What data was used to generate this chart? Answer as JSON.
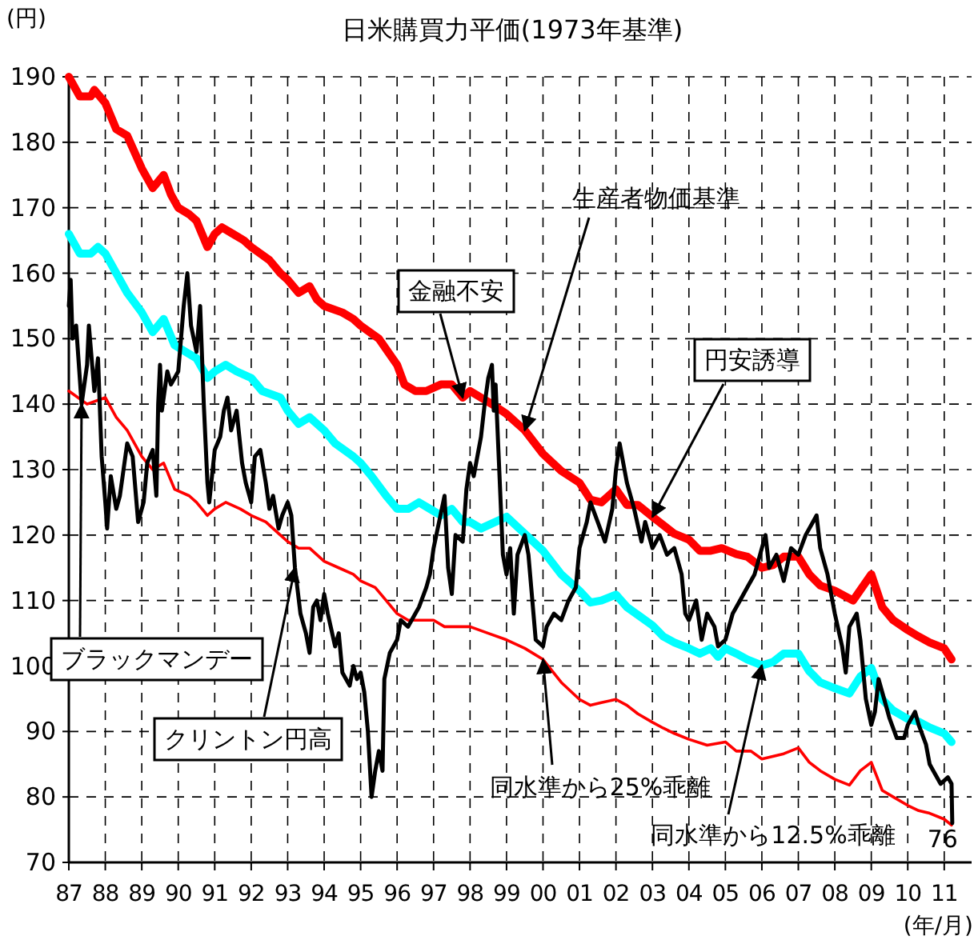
{
  "chart_data": {
    "type": "line",
    "title": "日米購買力平価(1973年基準)",
    "ylabel": "(円)",
    "xlabel": "(年/月)",
    "xlim": [
      1987,
      2011.75
    ],
    "ylim": [
      70,
      190
    ],
    "yticks": [
      70,
      80,
      90,
      100,
      110,
      120,
      130,
      140,
      150,
      160,
      170,
      180,
      190
    ],
    "xticks": [
      {
        "value": 1987,
        "label": "87"
      },
      {
        "value": 1988,
        "label": "88"
      },
      {
        "value": 1989,
        "label": "89"
      },
      {
        "value": 1990,
        "label": "90"
      },
      {
        "value": 1991,
        "label": "91"
      },
      {
        "value": 1992,
        "label": "92"
      },
      {
        "value": 1993,
        "label": "93"
      },
      {
        "value": 1994,
        "label": "94"
      },
      {
        "value": 1995,
        "label": "95"
      },
      {
        "value": 1996,
        "label": "96"
      },
      {
        "value": 1997,
        "label": "97"
      },
      {
        "value": 1998,
        "label": "98"
      },
      {
        "value": 1999,
        "label": "99"
      },
      {
        "value": 2000,
        "label": "00"
      },
      {
        "value": 2001,
        "label": "01"
      },
      {
        "value": 2002,
        "label": "02"
      },
      {
        "value": 2003,
        "label": "03"
      },
      {
        "value": 2004,
        "label": "04"
      },
      {
        "value": 2005,
        "label": "05"
      },
      {
        "value": 2006,
        "label": "06"
      },
      {
        "value": 2007,
        "label": "07"
      },
      {
        "value": 2008,
        "label": "08"
      },
      {
        "value": 2009,
        "label": "09"
      },
      {
        "value": 2010,
        "label": "10"
      },
      {
        "value": 2011,
        "label": "11"
      }
    ],
    "grid": true,
    "marker": "none",
    "line_style": "solid",
    "series": [
      {
        "color": "#ff0000",
        "x": [
          1987.0,
          1987.5,
          1988.0,
          1988.3,
          1988.6,
          1989.0,
          1989.3,
          1989.6,
          1989.9,
          1990.3,
          1990.5,
          1990.8,
          1991.0,
          1991.3,
          1991.7,
          1992.0,
          1992.4,
          1992.8,
          1993.0,
          1993.3,
          1993.6,
          1994.0,
          1994.4,
          1994.8,
          1995.0,
          1995.4,
          1995.7,
          1996.0,
          1996.3,
          1996.6,
          1997.0,
          1997.3,
          1997.6,
          1998.0,
          1998.5,
          1999.0,
          1999.5,
          2000.0,
          2000.5,
          2001.0,
          2001.3,
          2001.6,
          2002.0,
          2002.3,
          2002.6,
          2003.0,
          2003.3,
          2003.6,
          2004.0,
          2004.5,
          2005.0,
          2005.3,
          2005.7,
          2006.0,
          2006.3,
          2006.6,
          2007.0,
          2007.3,
          2007.6,
          2008.0,
          2008.4,
          2008.7,
          2009.0,
          2009.3,
          2009.6,
          2010.0,
          2010.3,
          2010.6,
          2011.0,
          2011.2
        ],
        "values": [
          142,
          140,
          141,
          138,
          136,
          132,
          130,
          131,
          127,
          126,
          125,
          123,
          124,
          125,
          124,
          123,
          122,
          120,
          119,
          118,
          118,
          116,
          115,
          114,
          113,
          112,
          110,
          108,
          107,
          107,
          107,
          106,
          106,
          106,
          105,
          104,
          102.7,
          101,
          97.5,
          94.9,
          94,
          94.4,
          94.9,
          94,
          92.7,
          91.4,
          90.5,
          89.7,
          88.8,
          87.9,
          88.4,
          87,
          87,
          85.8,
          86.2,
          86.6,
          87.5,
          85.3,
          84,
          82.7,
          81.8,
          84,
          85.3,
          81,
          80,
          78.7,
          77.9,
          77.5,
          76.6,
          75.7
        ]
      },
      {
        "color": "#00ffff",
        "x": [
          1987.0,
          1987.3,
          1987.6,
          1987.8,
          1988.0,
          1988.3,
          1988.6,
          1989.0,
          1989.3,
          1989.6,
          1989.9,
          1990.2,
          1990.5,
          1990.8,
          1991.0,
          1991.3,
          1991.6,
          1992.0,
          1992.3,
          1992.8,
          1993.0,
          1993.3,
          1993.6,
          1994.0,
          1994.3,
          1994.8,
          1995.0,
          1995.3,
          1995.7,
          1996.0,
          1996.3,
          1996.6,
          1996.9,
          1997.2,
          1997.5,
          1997.8,
          1998.0,
          1998.3,
          1999.0,
          1999.5,
          2000.0,
          2000.5,
          2001.0,
          2001.3,
          2001.6,
          2002.0,
          2002.3,
          2002.6,
          2003.0,
          2003.3,
          2003.6,
          2004.0,
          2004.3,
          2004.6,
          2004.8,
          2005.0,
          2005.3,
          2005.6,
          2006.0,
          2006.3,
          2006.6,
          2007.0,
          2007.3,
          2007.6,
          2008.0,
          2008.4,
          2008.7,
          2009.0,
          2009.3,
          2009.6,
          2010.0,
          2010.3,
          2010.6,
          2011.0,
          2011.2
        ],
        "values": [
          166,
          163,
          163,
          164,
          163,
          160,
          157,
          154,
          151,
          153,
          149,
          148,
          147,
          144,
          145,
          146,
          145,
          144,
          142,
          141,
          139,
          137,
          138,
          136,
          134,
          132,
          131,
          129,
          126,
          124,
          124,
          125,
          124,
          123,
          124,
          122,
          122,
          121,
          122.8,
          120.2,
          117.6,
          114,
          111.5,
          109.7,
          110,
          110.9,
          109,
          107.8,
          106.2,
          104.5,
          103.6,
          102.7,
          101.9,
          102.7,
          101.4,
          102.7,
          101.9,
          101,
          100.1,
          100.6,
          101.9,
          101.9,
          99.2,
          97.5,
          96.6,
          95.8,
          98.4,
          99.7,
          94.9,
          93.2,
          91.9,
          91.5,
          90.6,
          89.7,
          88.4
        ]
      },
      {
        "color": "#ff0000",
        "x": [
          1987.0,
          1987.3,
          1987.6,
          1987.7,
          1988.0,
          1988.3,
          1988.6,
          1989.0,
          1989.3,
          1989.6,
          1989.8,
          1990.0,
          1990.3,
          1990.5,
          1990.8,
          1991.0,
          1991.2,
          1991.5,
          1991.8,
          1992.0,
          1992.5,
          1992.8,
          1993.0,
          1993.3,
          1993.6,
          1993.8,
          1994.0,
          1994.5,
          1994.8,
          1995.0,
          1995.5,
          1996.0,
          1996.2,
          1996.5,
          1996.8,
          1997.2,
          1997.5,
          1997.8,
          1998.0,
          1998.3,
          1998.6,
          1999.0,
          1999.5,
          2000.0,
          2000.5,
          2001.0,
          2001.3,
          2001.6,
          2002.0,
          2002.3,
          2002.6,
          2003.0,
          2003.3,
          2003.6,
          2004.0,
          2004.3,
          2004.6,
          2004.9,
          2005.3,
          2005.6,
          2006.0,
          2006.3,
          2006.6,
          2007.0,
          2007.3,
          2007.6,
          2008.0,
          2008.5,
          2009.0,
          2009.3,
          2009.6,
          2010.0,
          2010.3,
          2010.6,
          2011.0,
          2011.2
        ],
        "values": [
          190,
          187,
          187,
          188,
          186,
          182,
          181,
          176,
          173,
          175,
          172,
          170,
          169,
          168,
          164,
          166,
          167,
          166,
          165,
          164,
          162,
          160,
          159,
          157,
          158,
          156,
          155,
          154,
          153,
          152,
          150,
          146,
          143,
          142,
          142,
          143,
          143,
          141,
          142,
          141,
          140,
          138.5,
          136,
          132.4,
          129.8,
          128,
          125.4,
          125,
          127,
          124.6,
          124.6,
          122.8,
          121.5,
          120.2,
          119.3,
          117.6,
          117.6,
          118,
          117.1,
          116.7,
          115,
          115.4,
          116.7,
          116.7,
          114,
          112.3,
          111.5,
          110,
          114,
          109,
          107,
          105.5,
          104.5,
          103.6,
          102.7,
          101
        ]
      },
      {
        "color": "#000000",
        "x": [
          1987.0,
          1987.05,
          1987.1,
          1987.2,
          1987.35,
          1987.5,
          1987.55,
          1987.7,
          1987.8,
          1987.9,
          1988.0,
          1988.05,
          1988.15,
          1988.3,
          1988.4,
          1988.6,
          1988.75,
          1988.9,
          1989.05,
          1989.15,
          1989.3,
          1989.4,
          1989.45,
          1989.5,
          1989.55,
          1989.7,
          1989.8,
          1989.9,
          1990.0,
          1990.15,
          1990.25,
          1990.35,
          1990.5,
          1990.6,
          1990.7,
          1990.8,
          1990.85,
          1991.0,
          1991.15,
          1991.25,
          1991.35,
          1991.45,
          1991.6,
          1991.75,
          1991.85,
          1992.0,
          1992.1,
          1992.25,
          1992.4,
          1992.5,
          1992.6,
          1992.75,
          1992.85,
          1993.0,
          1993.1,
          1993.2,
          1993.35,
          1993.5,
          1993.6,
          1993.7,
          1993.8,
          1993.9,
          1994.0,
          1994.1,
          1994.3,
          1994.4,
          1994.5,
          1994.7,
          1994.8,
          1994.9,
          1995.0,
          1995.1,
          1995.2,
          1995.3,
          1995.4,
          1995.5,
          1995.6,
          1995.65,
          1995.8,
          1996.0,
          1996.1,
          1996.3,
          1996.5,
          1996.6,
          1996.8,
          1996.9,
          1997.0,
          1997.15,
          1997.3,
          1997.4,
          1997.5,
          1997.6,
          1997.8,
          1997.9,
          1998.0,
          1998.1,
          1998.3,
          1998.4,
          1998.5,
          1998.6,
          1998.65,
          1998.7,
          1998.8,
          1998.9,
          1999.0,
          1999.1,
          1999.2,
          1999.3,
          1999.5,
          1999.6,
          1999.8,
          2000.0,
          2000.1,
          2000.3,
          2000.5,
          2000.7,
          2000.9,
          2001.0,
          2001.2,
          2001.3,
          2001.5,
          2001.7,
          2001.9,
          2002.0,
          2002.1,
          2002.3,
          2002.5,
          2002.7,
          2002.8,
          2003.0,
          2003.2,
          2003.4,
          2003.6,
          2003.8,
          2003.9,
          2004.0,
          2004.2,
          2004.35,
          2004.5,
          2004.7,
          2004.8,
          2005.0,
          2005.2,
          2005.4,
          2005.6,
          2005.8,
          2005.9,
          2006.0,
          2006.1,
          2006.2,
          2006.4,
          2006.6,
          2006.8,
          2007.0,
          2007.2,
          2007.4,
          2007.5,
          2007.6,
          2007.8,
          2008.0,
          2008.2,
          2008.3,
          2008.4,
          2008.6,
          2008.7,
          2008.85,
          2009.0,
          2009.1,
          2009.2,
          2009.3,
          2009.5,
          2009.7,
          2009.9,
          2010.0,
          2010.2,
          2010.3,
          2010.5,
          2010.6,
          2010.7,
          2010.9,
          2011.1,
          2011.2,
          2011.22
        ],
        "values": [
          155,
          159,
          150,
          152,
          140,
          146,
          152,
          142,
          147,
          132,
          125,
          121,
          129,
          124,
          126,
          134,
          132,
          122,
          125,
          131,
          133,
          126,
          140,
          146,
          139,
          145,
          143,
          144,
          145,
          155,
          160,
          152,
          148,
          155,
          140,
          128,
          125,
          133,
          135,
          139,
          141,
          136,
          139,
          131,
          128,
          125,
          132,
          133,
          128,
          124,
          126,
          121,
          123,
          125,
          123,
          115,
          108,
          105,
          102,
          109,
          110,
          107,
          111,
          108,
          103,
          105,
          99,
          97,
          100,
          98,
          99,
          96,
          90,
          80,
          84,
          87,
          84,
          98,
          102,
          104,
          107,
          106,
          108,
          109,
          112,
          114,
          118,
          122,
          126,
          115,
          111,
          120,
          119,
          127,
          131,
          129,
          135,
          140,
          144,
          146,
          139,
          143,
          130,
          117,
          114,
          118,
          108,
          117,
          120,
          117,
          104,
          103,
          106,
          108,
          107,
          110,
          112,
          118,
          122,
          125,
          122,
          119,
          124,
          130,
          134,
          128,
          124,
          119,
          122,
          118,
          120,
          117,
          118,
          114,
          108,
          107,
          110,
          104,
          108,
          106,
          103,
          104,
          108,
          110,
          112,
          114,
          116,
          118,
          120,
          115,
          117,
          113,
          118,
          117,
          120,
          122,
          123,
          118,
          114,
          108,
          103,
          99,
          106,
          108,
          104,
          95,
          91,
          93,
          98,
          96,
          92,
          89,
          89,
          91,
          93,
          91,
          88,
          85,
          84,
          82,
          83,
          82,
          76
        ]
      }
    ],
    "annotations": [
      {
        "text": "ブラックマンデー",
        "x": 1987.35,
        "y": 140
      },
      {
        "text": "クリントン円高",
        "x": 1993.2,
        "y": 115
      },
      {
        "text": "金融不安",
        "x": 1997.8,
        "y": 141
      },
      {
        "text": "生産者物価基準",
        "x": 1999.5,
        "y": 136
      },
      {
        "text": "円安誘導",
        "x": 2003.0,
        "y": 122.8
      },
      {
        "text": "同水準から25%乖離",
        "x": 2000.0,
        "y": 101
      },
      {
        "text": "同水準から12.5%乖離",
        "x": 2006.0,
        "y": 100.1
      },
      {
        "text": "76",
        "x": 2011.22,
        "y": 76
      }
    ]
  }
}
